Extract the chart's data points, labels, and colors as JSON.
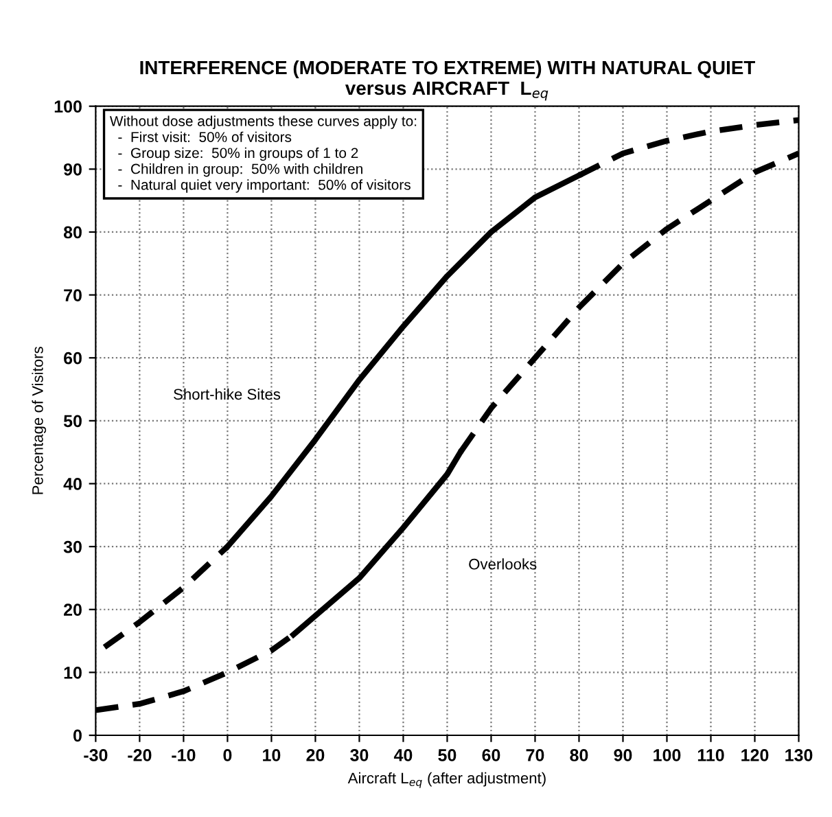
{
  "chart_data": {
    "type": "line",
    "title": "INTERFERENCE (MODERATE TO EXTREME) WITH NATURAL QUIET\nversus AIRCRAFT  L$_{eq}$",
    "xlabel": "Aircraft L$_{eq}$ (after adjustment)",
    "ylabel": "Percentage of Visitors",
    "xlim": [
      -30,
      130
    ],
    "xticks": [
      -30,
      -20,
      -10,
      0,
      10,
      20,
      30,
      40,
      50,
      60,
      70,
      80,
      90,
      100,
      110,
      120,
      130
    ],
    "ylim": [
      0,
      100
    ],
    "yticks": [
      0,
      10,
      20,
      30,
      40,
      50,
      60,
      70,
      80,
      90,
      100
    ],
    "grid": true,
    "marker": "none",
    "series": [
      {
        "color": "#000000",
        "line_style": "dashed",
        "x": [
          -28,
          -20,
          -10,
          0
        ],
        "values": [
          14,
          18,
          23.5,
          30
        ]
      },
      {
        "color": "#000000",
        "line_style": "solid",
        "x": [
          0,
          10,
          20,
          30,
          40,
          50,
          60,
          70,
          80
        ],
        "values": [
          30,
          38,
          47,
          56.5,
          65,
          73,
          80,
          85.5,
          89
        ]
      },
      {
        "color": "#000000",
        "line_style": "dashed",
        "x": [
          80,
          90,
          100,
          110,
          120,
          130
        ],
        "values": [
          89,
          92.5,
          94.5,
          96,
          97,
          97.8
        ]
      },
      {
        "color": "#000000",
        "line_style": "dashed",
        "x": [
          -30,
          -20,
          -10,
          0,
          10,
          15
        ],
        "values": [
          4,
          5,
          7,
          10,
          13.5,
          16
        ]
      },
      {
        "color": "#000000",
        "line_style": "solid",
        "x": [
          15,
          20,
          30,
          40,
          50,
          53
        ],
        "values": [
          16,
          19,
          25,
          33,
          41.5,
          45
        ]
      },
      {
        "color": "#000000",
        "line_style": "dashed",
        "x": [
          53,
          60,
          70,
          80,
          90,
          100,
          110,
          120,
          130
        ],
        "values": [
          45,
          52,
          60,
          68,
          75,
          80.5,
          85,
          89.5,
          92.5
        ]
      }
    ],
    "annotations": [
      "Without dose adjustments these curves apply to:\n  -  First visit:  50% of visitors\n  -  Group size:  50% in groups of 1 to 2\n  -  Children in group:  50% with children\n  -  Natural quiet very important:  50% of visitors",
      "Short-hike Sites",
      "Overlooks"
    ]
  }
}
